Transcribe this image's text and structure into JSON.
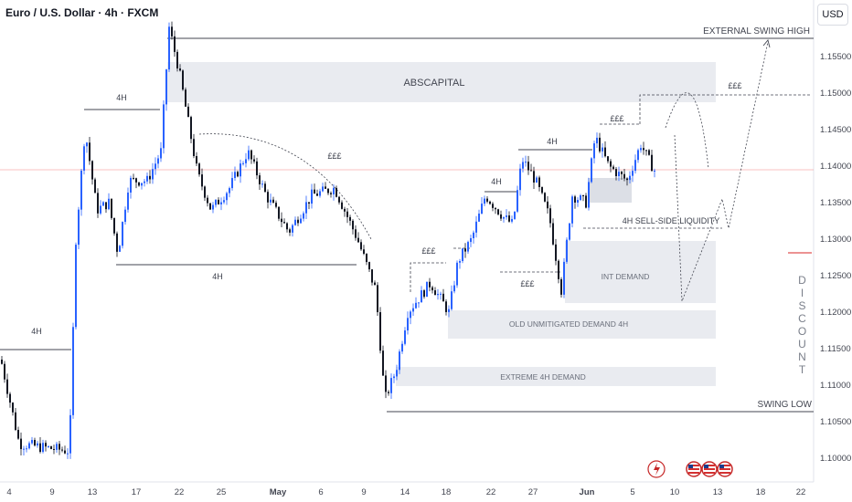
{
  "header": {
    "title": "Euro / U.S. Dollar · 4h · FXCM",
    "currency": "USD"
  },
  "colors": {
    "up": "#2962ff",
    "down": "#131722",
    "zone": "#e9ebf0",
    "price_line": "#f28b8b",
    "annotation": "#434651"
  },
  "annotations": {
    "external_swing_high": "EXTERNAL SWING HIGH",
    "swing_low": "SWING LOW",
    "abscapital": "ABSCAPITAL",
    "int_demand": "INT DEMAND",
    "old_demand": "OLD UNMITIGATED DEMAND  4H",
    "extreme_demand": "EXTREME 4H DEMAND",
    "sell_side": "4H SELL-SIDE LIQUIDITY",
    "h4_a": "4H",
    "h4_b": "4H",
    "h4_c": "4H",
    "h4_d": "4H",
    "h4_e": "4H",
    "liq_a": "£££",
    "liq_b": "£££",
    "liq_c": "£££",
    "liq_d": "£££",
    "liq_e": "£££",
    "discount": "DISCOUNT"
  },
  "chart_data": {
    "type": "candlestick",
    "title": "Euro / U.S. Dollar · 4h · FXCM",
    "ylim": [
      1.0955,
      1.1625
    ],
    "y_ticks": [
      "1.15500",
      "1.15000",
      "1.14500",
      "1.14000",
      "1.13500",
      "1.13000",
      "1.12500",
      "1.12000",
      "1.11500",
      "1.11000",
      "1.10500",
      "1.10000"
    ],
    "x_ticks": [
      "4",
      "9",
      "13",
      "17",
      "22",
      "25",
      "May",
      "6",
      "9",
      "14",
      "18",
      "22",
      "27",
      "Jun",
      "5",
      "10",
      "13",
      "18",
      "22"
    ],
    "current_price": 1.1392,
    "key_levels": {
      "external_swing_high": 1.1571,
      "swing_low": 1.1063,
      "sell_side_liquidity": 1.1311
    },
    "zones": [
      {
        "label": "ABSCAPITAL",
        "low": 1.1487,
        "high": 1.154
      },
      {
        "label": "INT DEMAND",
        "low": 1.1211,
        "high": 1.1295
      },
      {
        "label": "OLD UNMITIGATED DEMAND  4H",
        "low": 1.1162,
        "high": 1.1198
      },
      {
        "label": "EXTREME 4H DEMAND",
        "low": 1.1095,
        "high": 1.1121
      }
    ]
  }
}
